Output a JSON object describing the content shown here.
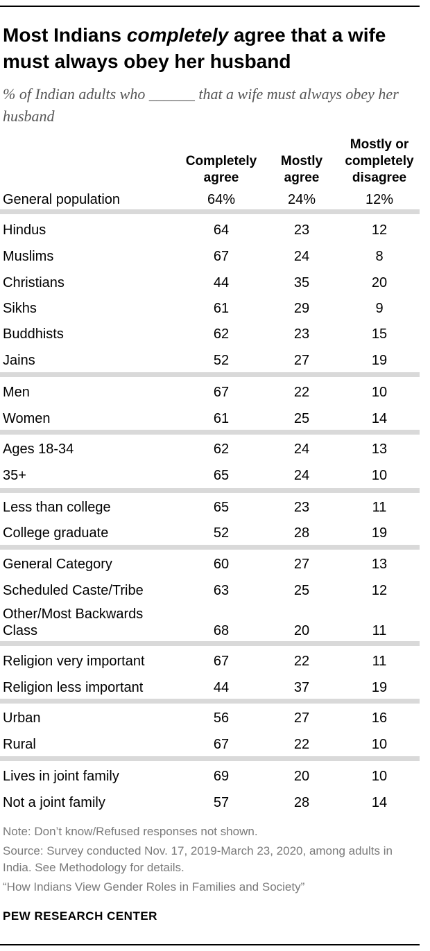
{
  "title": {
    "part1": "Most Indians ",
    "emphasis": "completely",
    "part2": " agree that a wife must always obey her husband"
  },
  "subtitle": "% of Indian adults who ______ that a wife must always obey her husband",
  "chart_data": {
    "type": "table",
    "columns": [
      "Completely agree",
      "Mostly agree",
      "Mostly or completely disagree"
    ],
    "groups": [
      [
        {
          "label": "General population",
          "values": [
            "64%",
            "24%",
            "12%"
          ]
        }
      ],
      [
        {
          "label": "Hindus",
          "values": [
            "64",
            "23",
            "12"
          ]
        },
        {
          "label": "Muslims",
          "values": [
            "67",
            "24",
            "8"
          ]
        },
        {
          "label": "Christians",
          "values": [
            "44",
            "35",
            "20"
          ]
        },
        {
          "label": "Sikhs",
          "values": [
            "61",
            "29",
            "9"
          ]
        },
        {
          "label": "Buddhists",
          "values": [
            "62",
            "23",
            "15"
          ]
        },
        {
          "label": "Jains",
          "values": [
            "52",
            "27",
            "19"
          ]
        }
      ],
      [
        {
          "label": "Men",
          "values": [
            "67",
            "22",
            "10"
          ]
        },
        {
          "label": "Women",
          "values": [
            "61",
            "25",
            "14"
          ]
        }
      ],
      [
        {
          "label": "Ages 18-34",
          "values": [
            "62",
            "24",
            "13"
          ]
        },
        {
          "label": "35+",
          "values": [
            "65",
            "24",
            "10"
          ]
        }
      ],
      [
        {
          "label": "Less than college",
          "values": [
            "65",
            "23",
            "11"
          ]
        },
        {
          "label": "College graduate",
          "values": [
            "52",
            "28",
            "19"
          ]
        }
      ],
      [
        {
          "label": "General Category",
          "values": [
            "60",
            "27",
            "13"
          ]
        },
        {
          "label": "Scheduled Caste/Tribe",
          "values": [
            "63",
            "25",
            "12"
          ]
        },
        {
          "label": "Other/Most Backwards Class",
          "values": [
            "68",
            "20",
            "11"
          ]
        }
      ],
      [
        {
          "label": "Religion very important",
          "values": [
            "67",
            "22",
            "11"
          ]
        },
        {
          "label": "Religion less important",
          "values": [
            "44",
            "37",
            "19"
          ]
        }
      ],
      [
        {
          "label": "Urban",
          "values": [
            "56",
            "27",
            "16"
          ]
        },
        {
          "label": "Rural",
          "values": [
            "67",
            "22",
            "10"
          ]
        }
      ],
      [
        {
          "label": "Lives in joint family",
          "values": [
            "69",
            "20",
            "10"
          ]
        },
        {
          "label": "Not a joint family",
          "values": [
            "57",
            "28",
            "14"
          ]
        }
      ]
    ]
  },
  "notes": {
    "note": "Note: Don’t know/Refused responses not shown.",
    "source": "Source: Survey conducted Nov. 17, 2019-March 23, 2020, among adults in India. See Methodology for details.",
    "report": "“How Indians View Gender Roles in Families and Society”"
  },
  "brand": "PEW RESEARCH CENTER"
}
